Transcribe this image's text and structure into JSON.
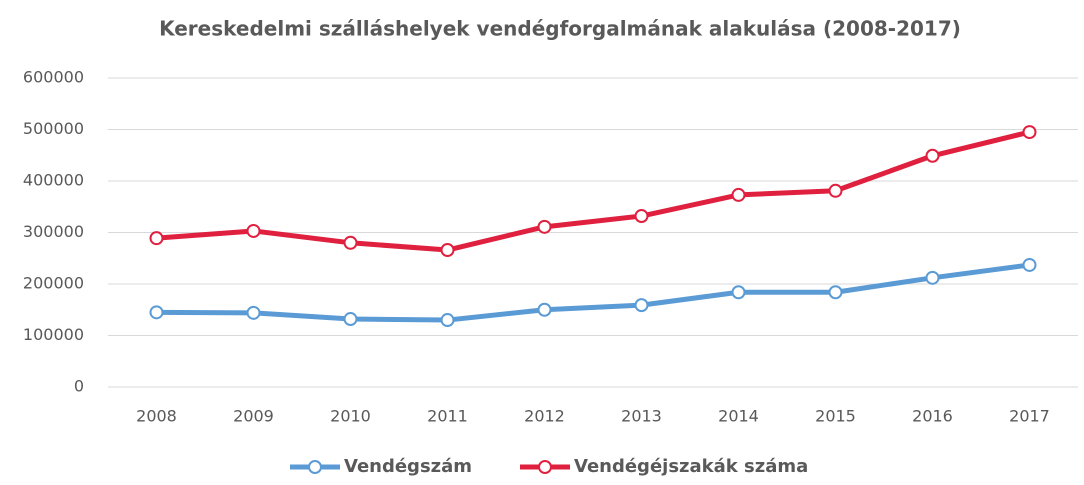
{
  "chart_data": {
    "type": "line",
    "title": "Kereskedelmi szálláshelyek vendégforgalmának alakulása (2008-2017)",
    "categories": [
      "2008",
      "2009",
      "2010",
      "2011",
      "2012",
      "2013",
      "2014",
      "2015",
      "2016",
      "2017"
    ],
    "series": [
      {
        "name": "Vendégszám",
        "color": "#5b9bd5",
        "values": [
          145000,
          144000,
          132000,
          130000,
          150000,
          159000,
          184000,
          184000,
          212000,
          237000
        ]
      },
      {
        "name": "Vendégéjszakák száma",
        "color": "#e0203f",
        "values": [
          289000,
          303000,
          280000,
          266000,
          311000,
          332000,
          373000,
          381000,
          449000,
          495000
        ]
      }
    ],
    "ylim": [
      0,
      600000
    ],
    "yticks": [
      0,
      100000,
      200000,
      300000,
      400000,
      500000,
      600000
    ],
    "grid": true,
    "legend": "bottom"
  }
}
